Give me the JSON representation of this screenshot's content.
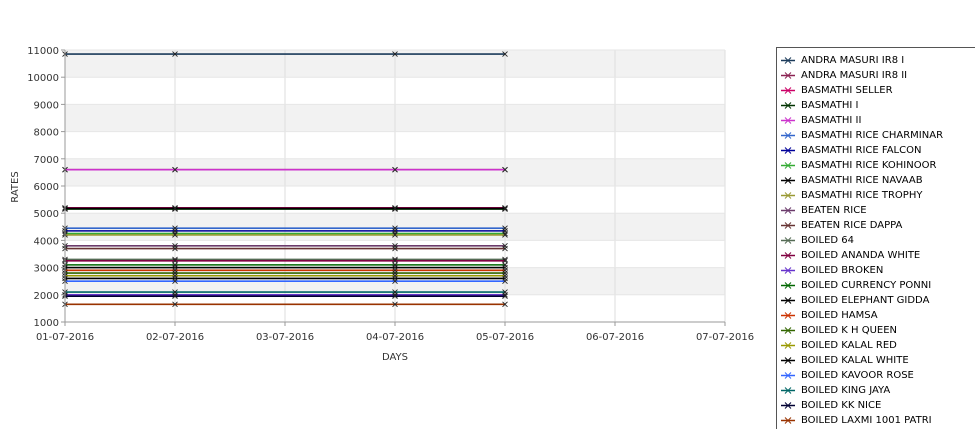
{
  "chart_data": {
    "type": "line",
    "xlabel": "DAYS",
    "ylabel": "RATES",
    "ylim": [
      1000,
      11000
    ],
    "yticks": [
      1000,
      2000,
      3000,
      4000,
      5000,
      6000,
      7000,
      8000,
      9000,
      10000,
      11000
    ],
    "x_ticks": [
      "01-07-2016",
      "02-07-2016",
      "03-07-2016",
      "04-07-2016",
      "05-07-2016",
      "06-07-2016",
      "07-07-2016"
    ],
    "grid": true,
    "legend_position": "right",
    "series": [
      {
        "name": "ANDRA MASURI IR8 I",
        "color": "#1b3b5a",
        "values": [
          10850,
          10850,
          10850,
          10850
        ]
      },
      {
        "name": "ANDRA MASURI IR8 II",
        "color": "#8b2252",
        "values": [
          6600,
          6600,
          6600,
          6600
        ]
      },
      {
        "name": "BASMATHI  SELLER",
        "color": "#cc0066",
        "values": [
          5200,
          5200,
          5200,
          5200
        ]
      },
      {
        "name": "BASMATHI I",
        "color": "#003300",
        "values": [
          5150,
          5150,
          5150,
          5150
        ]
      },
      {
        "name": "BASMATHI II",
        "color": "#cc33cc",
        "values": [
          6600,
          6600,
          6600,
          6600
        ]
      },
      {
        "name": "BASMATHI RICE CHARMINAR",
        "color": "#3366cc",
        "values": [
          4450,
          4450,
          4450,
          4450
        ]
      },
      {
        "name": "BASMATHI RICE FALCON",
        "color": "#000099",
        "values": [
          4350,
          4350,
          4350,
          4350
        ]
      },
      {
        "name": "BASMATHI RICE KOHINOOR",
        "color": "#33aa33",
        "values": [
          4250,
          4250,
          4250,
          4250
        ]
      },
      {
        "name": "BASMATHI RICE NAVAAB",
        "color": "#000000",
        "values": [
          5180,
          5180,
          5180,
          5180
        ]
      },
      {
        "name": "BASMATHI RICE TROPHY",
        "color": "#999933",
        "values": [
          4200,
          4200,
          4200,
          4200
        ]
      },
      {
        "name": "BEATEN RICE",
        "color": "#6b3b6b",
        "values": [
          3800,
          3800,
          3800,
          3800
        ]
      },
      {
        "name": "BEATEN RICE DAPPA",
        "color": "#663333",
        "values": [
          3700,
          3700,
          3700,
          3700
        ]
      },
      {
        "name": "BOILED 64",
        "color": "#556b55",
        "values": [
          3300,
          3300,
          3300,
          3300
        ]
      },
      {
        "name": "BOILED ANANDA WHITE",
        "color": "#800040",
        "values": [
          3250,
          3250,
          3250,
          3250
        ]
      },
      {
        "name": "BOILED BROKEN",
        "color": "#6633cc",
        "values": [
          2000,
          2000,
          2000,
          2000
        ]
      },
      {
        "name": "BOILED CURRENCY PONNI",
        "color": "#006600",
        "values": [
          3100,
          3100,
          3100,
          3100
        ]
      },
      {
        "name": "BOILED ELEPHANT GIDDA",
        "color": "#000000",
        "values": [
          3000,
          3000,
          3000,
          3000
        ]
      },
      {
        "name": "BOILED HAMSA",
        "color": "#cc3300",
        "values": [
          2900,
          2900,
          2900,
          2900
        ]
      },
      {
        "name": "BOILED K H QUEEN",
        "color": "#336600",
        "values": [
          2800,
          2800,
          2800,
          2800
        ]
      },
      {
        "name": "BOILED KALAL RED",
        "color": "#999900",
        "values": [
          2700,
          2700,
          2700,
          2700
        ]
      },
      {
        "name": "BOILED KALAL WHITE",
        "color": "#000000",
        "values": [
          2600,
          2600,
          2600,
          2600
        ]
      },
      {
        "name": "BOILED KAVOOR ROSE",
        "color": "#3366ff",
        "values": [
          2500,
          2500,
          2500,
          2500
        ]
      },
      {
        "name": "BOILED KING JAYA",
        "color": "#006666",
        "values": [
          2100,
          2100,
          2100,
          2100
        ]
      },
      {
        "name": "BOILED KK NICE",
        "color": "#000033",
        "values": [
          1950,
          1950,
          1950,
          1950
        ]
      },
      {
        "name": "BOILED LAXMI 1001 PATRI",
        "color": "#993300",
        "values": [
          1650,
          1650,
          1650,
          1650
        ]
      }
    ],
    "x_series_days": [
      "01-07-2016",
      "02-07-2016",
      "04-07-2016",
      "05-07-2016"
    ]
  }
}
